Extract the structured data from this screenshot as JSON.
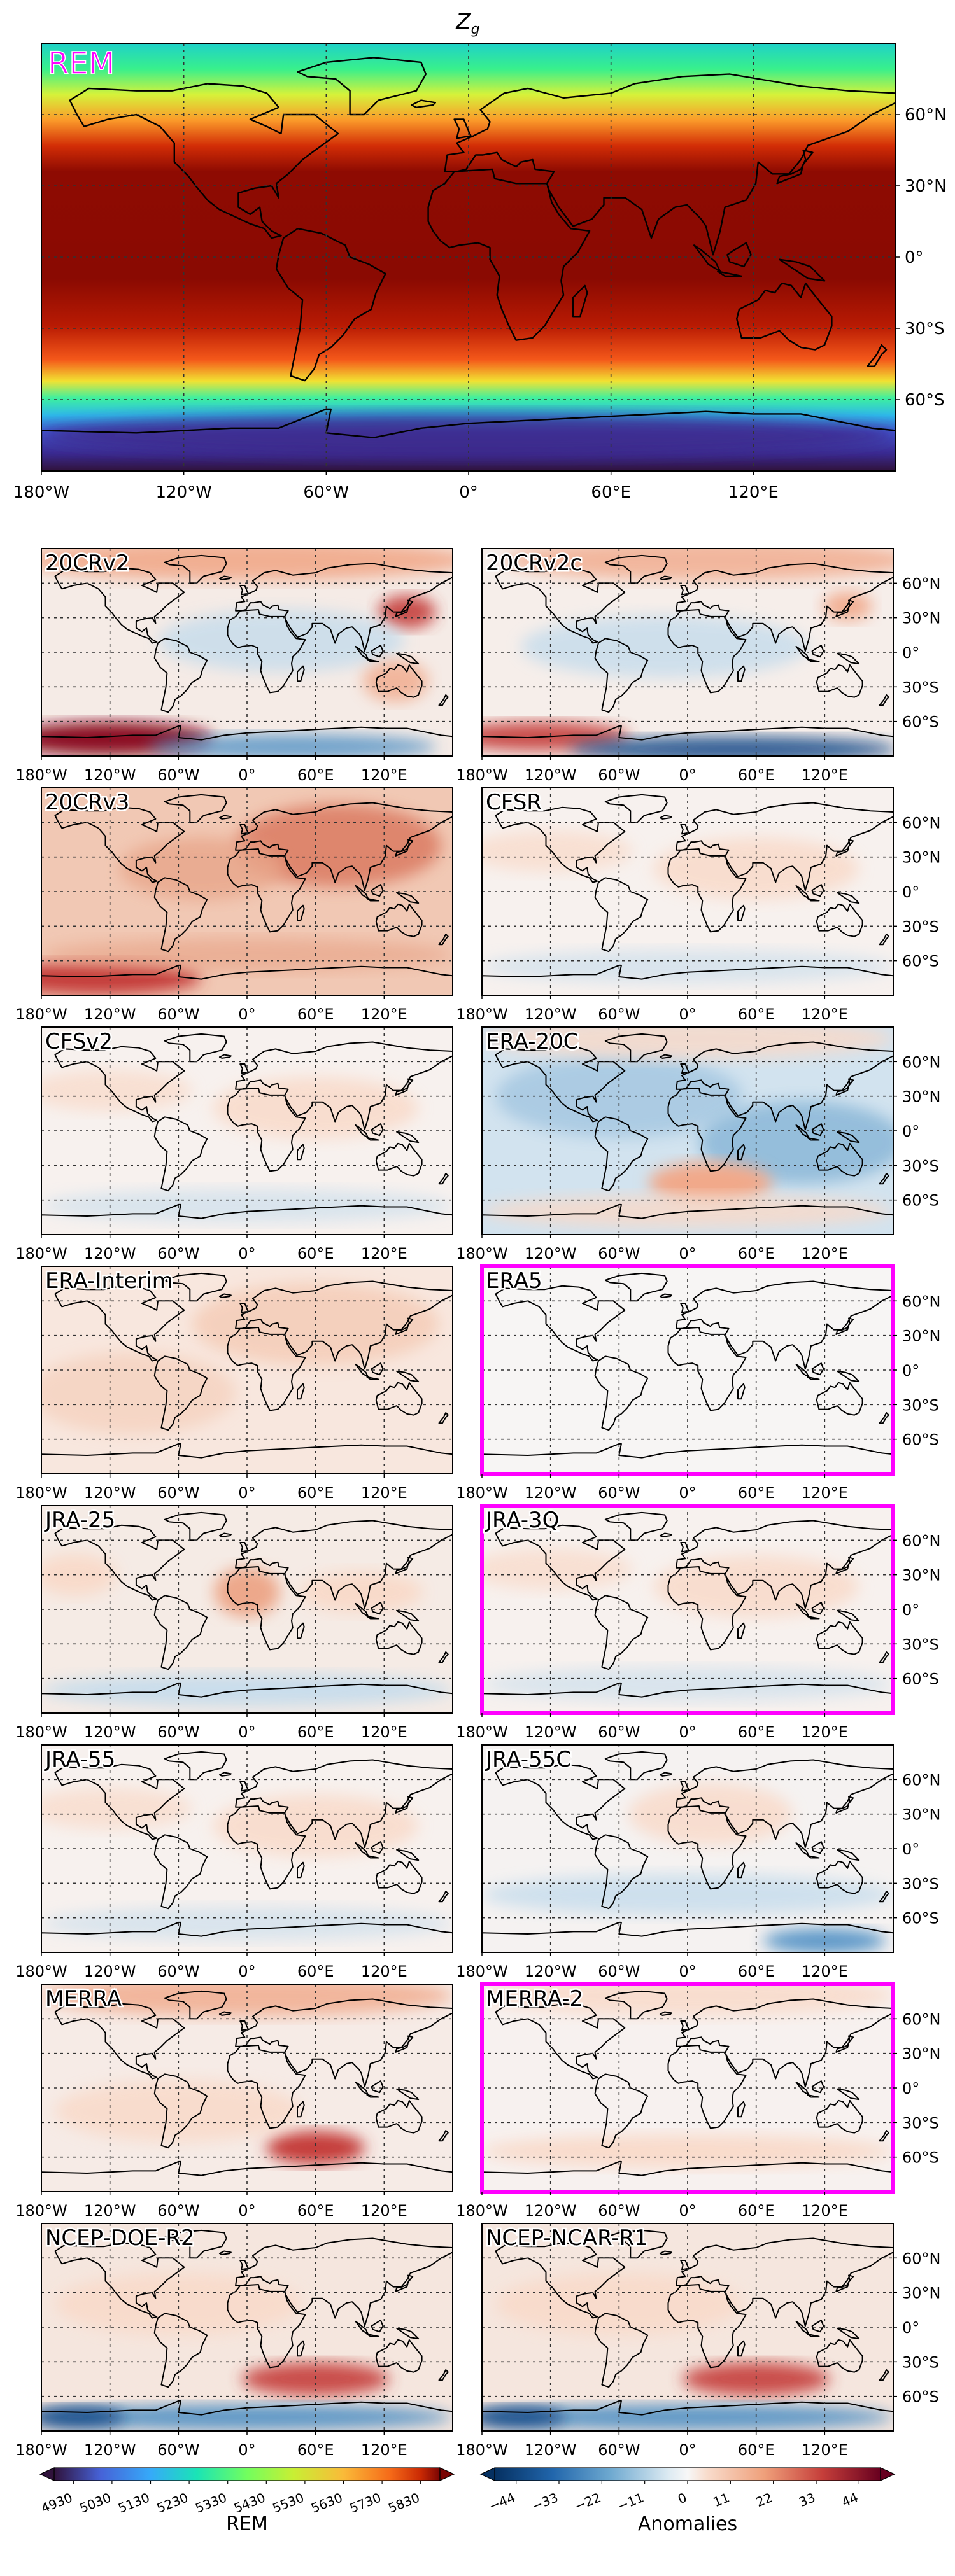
{
  "title": "Z",
  "title_sub": "g",
  "main_panel": {
    "label": "REM",
    "label_color": "#ff00ff"
  },
  "lon_labels": [
    "180°W",
    "120°W",
    "60°W",
    "0°",
    "60°E",
    "120°E"
  ],
  "lat_labels": [
    "60°N",
    "30°N",
    "0°",
    "30°S",
    "60°S"
  ],
  "panels": [
    {
      "label": "20CRv2",
      "highlight": false,
      "anom": "20crv2"
    },
    {
      "label": "20CRv2c",
      "highlight": false,
      "anom": "20crv2c"
    },
    {
      "label": "20CRv3",
      "highlight": false,
      "anom": "20crv3"
    },
    {
      "label": "CFSR",
      "highlight": false,
      "anom": "weak-pos"
    },
    {
      "label": "CFSv2",
      "highlight": false,
      "anom": "weak-pos"
    },
    {
      "label": "ERA-20C",
      "highlight": false,
      "anom": "era20c"
    },
    {
      "label": "ERA-Interim",
      "highlight": false,
      "anom": "mild-pos"
    },
    {
      "label": "ERA5",
      "highlight": true,
      "anom": "near-zero"
    },
    {
      "label": "JRA-25",
      "highlight": false,
      "anom": "jra25"
    },
    {
      "label": "JRA-3Q",
      "highlight": true,
      "anom": "weak-pos"
    },
    {
      "label": "JRA-55",
      "highlight": false,
      "anom": "weak-pos"
    },
    {
      "label": "JRA-55C",
      "highlight": false,
      "anom": "jra55c"
    },
    {
      "label": "MERRA",
      "highlight": false,
      "anom": "merra"
    },
    {
      "label": "MERRA-2",
      "highlight": true,
      "anom": "merra2"
    },
    {
      "label": "NCEP-DOE-R2",
      "highlight": false,
      "anom": "ncep"
    },
    {
      "label": "NCEP-NCAR-R1",
      "highlight": false,
      "anom": "ncep"
    }
  ],
  "colorbars": {
    "rem": {
      "label": "REM",
      "ticks": [
        "4930",
        "5030",
        "5130",
        "5230",
        "5330",
        "5430",
        "5530",
        "5630",
        "5730",
        "5830"
      ]
    },
    "anom": {
      "label": "Anomalies",
      "ticks": [
        "−44",
        "−33",
        "−22",
        "−11",
        "0",
        "11",
        "22",
        "33",
        "44"
      ]
    }
  },
  "colors": {
    "highlight": "#ff00ff"
  }
}
